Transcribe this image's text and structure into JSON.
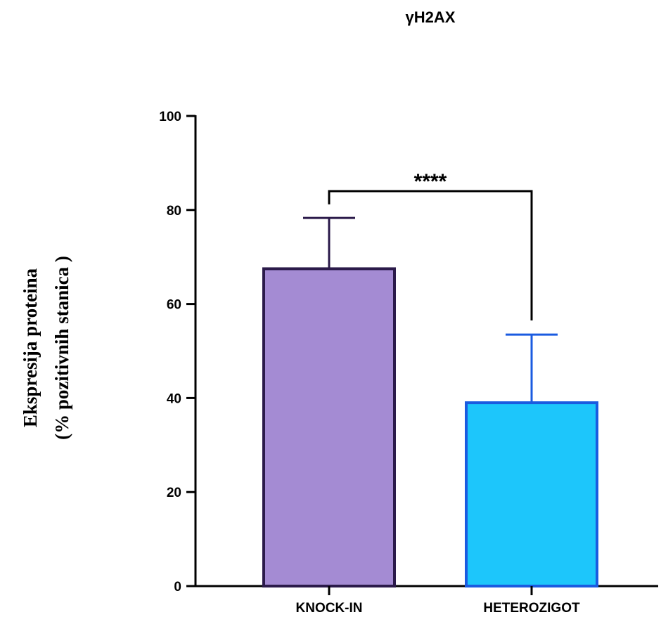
{
  "chart_data": {
    "type": "bar",
    "title": "γH2AX",
    "ylabel_lines": [
      "Ekspresija proteina",
      "(% pozitivnih stanica )"
    ],
    "xlabel": "",
    "ylim": [
      0,
      100
    ],
    "yticks": [
      0,
      20,
      40,
      60,
      80,
      100
    ],
    "categories": [
      "KNOCK-IN",
      "HETEROZIGOT"
    ],
    "values": [
      67.5,
      39
    ],
    "error_upper": [
      78.3,
      53.5
    ],
    "bar_fill_colors": [
      "#a48bd3",
      "#1dc6fb"
    ],
    "bar_edge_colors": [
      "#2b1a4a",
      "#1a5be0"
    ],
    "significance": {
      "label": "****",
      "between": [
        0,
        1
      ]
    },
    "grid": false,
    "legend": "none"
  }
}
